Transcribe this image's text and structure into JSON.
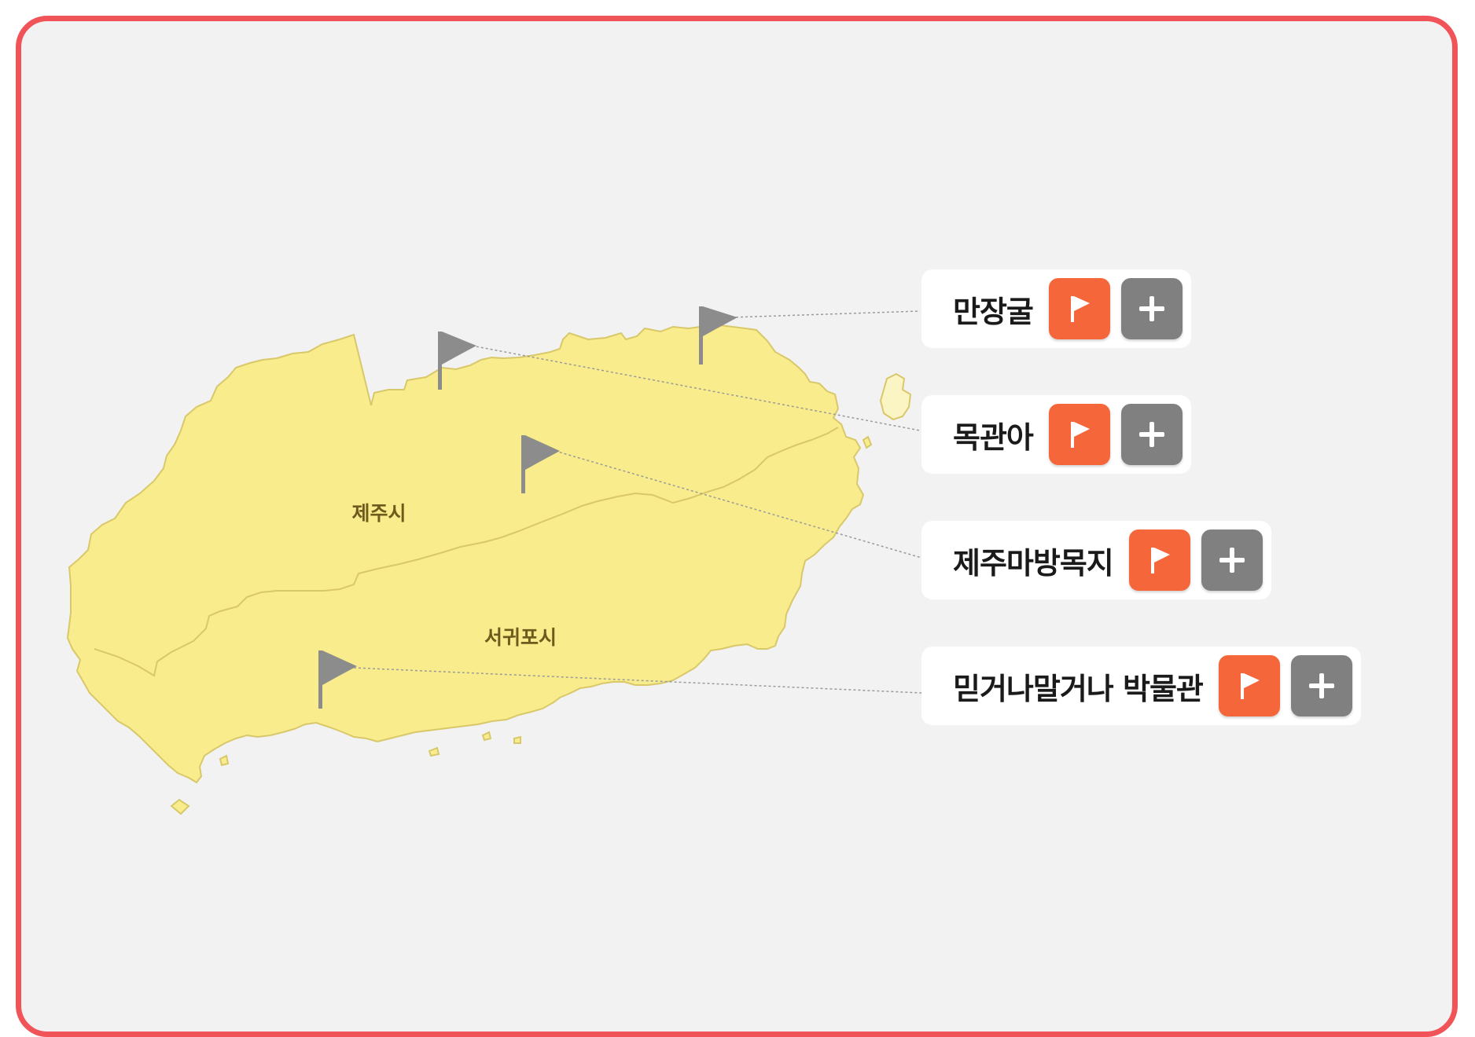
{
  "map": {
    "districts": [
      {
        "label": "제주시"
      },
      {
        "label": "서귀포시"
      }
    ]
  },
  "places": [
    {
      "name": "만장굴",
      "flag_icon": "flag-icon",
      "add_icon": "plus-icon"
    },
    {
      "name": "목관아",
      "flag_icon": "flag-icon",
      "add_icon": "plus-icon"
    },
    {
      "name": "제주마방목지",
      "flag_icon": "flag-icon",
      "add_icon": "plus-icon"
    },
    {
      "name": "믿거나말거나 박물관",
      "flag_icon": "flag-icon",
      "add_icon": "plus-icon"
    }
  ],
  "colors": {
    "frame_border": "#f05458",
    "background": "#f2f2f2",
    "island_fill": "#f9ec8c",
    "island_stroke": "#d9c86a",
    "flag_button": "#f5673a",
    "add_button": "#808080",
    "map_marker": "#8c8c8c"
  }
}
